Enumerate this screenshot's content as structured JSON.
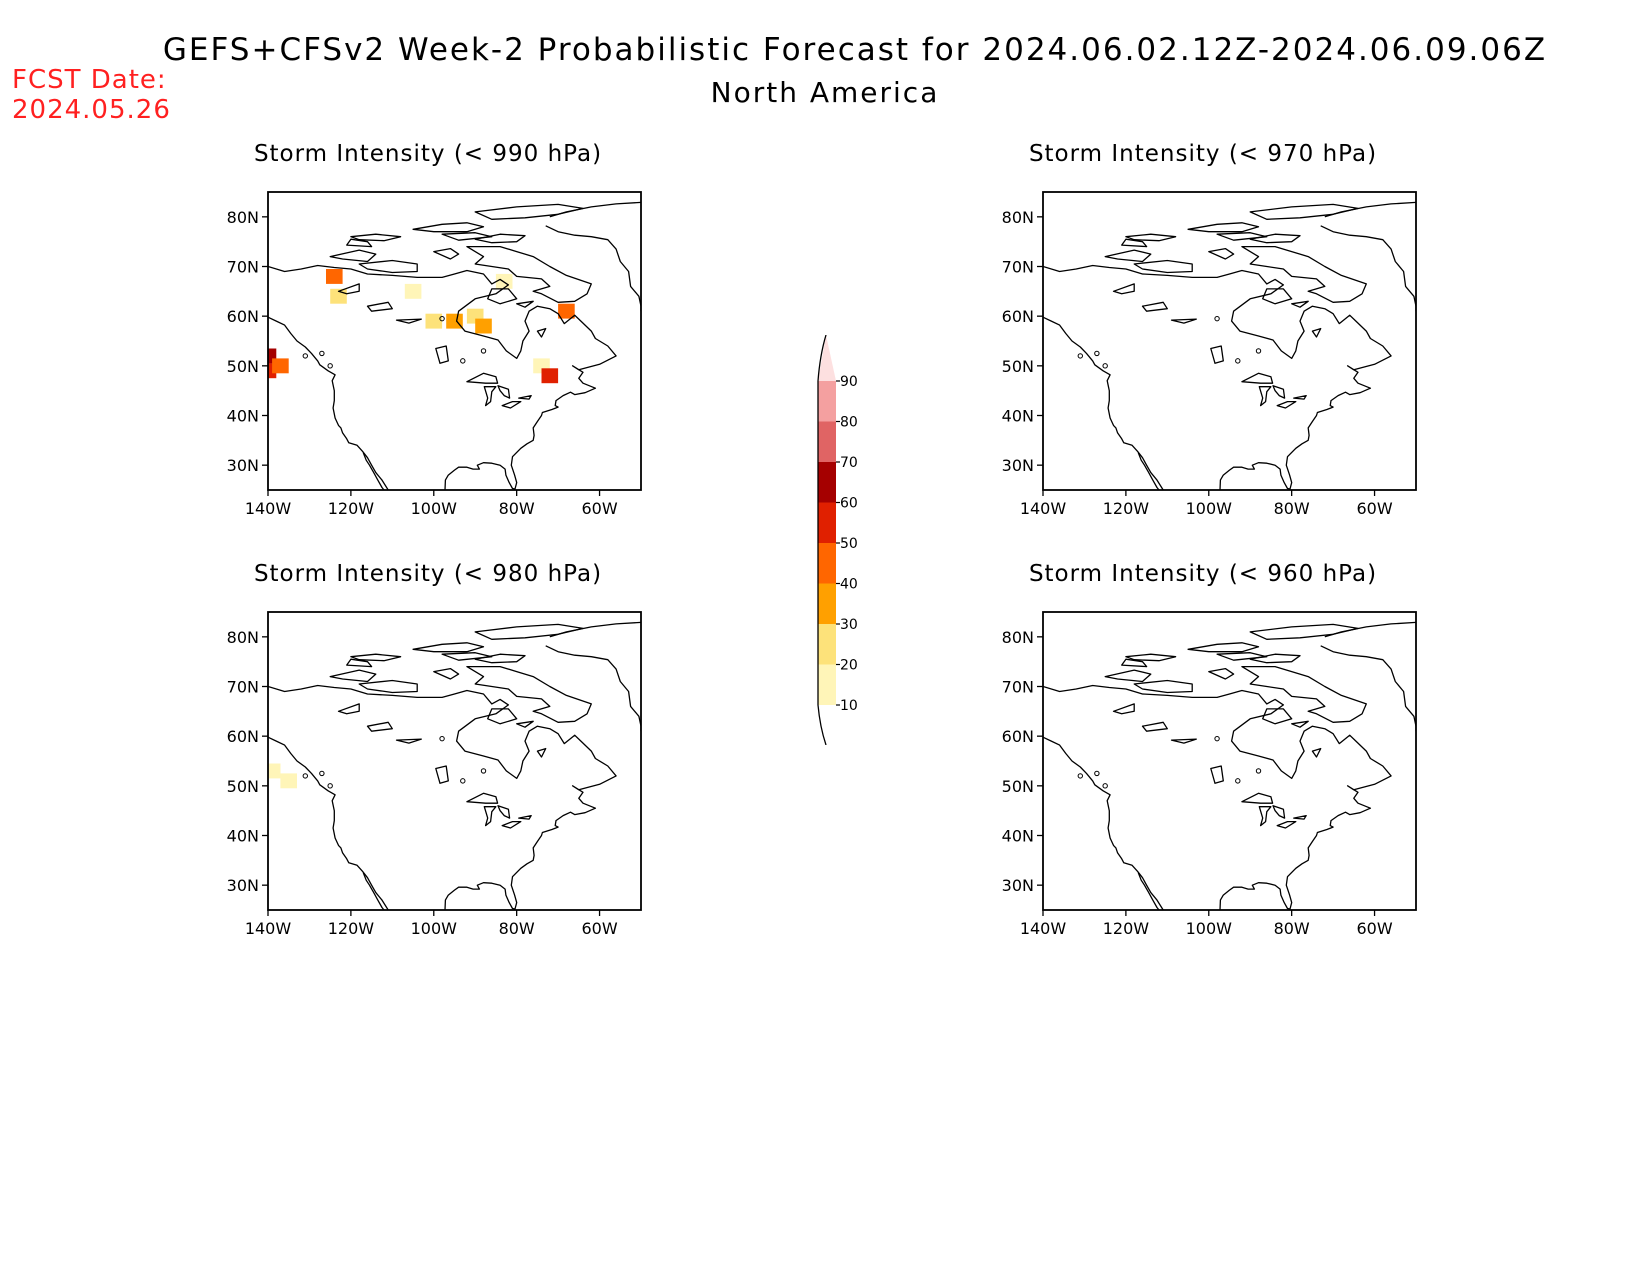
{
  "header": {
    "title": "GEFS+CFSv2 Week-2 Probabilistic Forecast for 2024.06.02.12Z-2024.06.09.06Z",
    "subtitle": "North America",
    "fcst_label": "FCST Date:",
    "fcst_date": "2024.05.26"
  },
  "colors": {
    "fcst_text": "#ff2020",
    "scale": [
      "#fff5b8",
      "#fde27a",
      "#ffa000",
      "#ff6600",
      "#e02000",
      "#a50000",
      "#e06464",
      "#f4a0a0",
      "#fde0e0"
    ]
  },
  "colorbar": {
    "labels": [
      "10",
      "20",
      "30",
      "40",
      "50",
      "60",
      "70",
      "80",
      "90"
    ]
  },
  "axes": {
    "lat_labels": [
      "80N",
      "70N",
      "60N",
      "50N",
      "40N",
      "30N"
    ],
    "lon_labels": [
      "140W",
      "120W",
      "100W",
      "80W",
      "60W"
    ]
  },
  "panels": [
    {
      "id": "p990",
      "title": "Storm Intensity (< 990 hPa)",
      "shading": [
        {
          "lon": -140,
          "lat": 49,
          "prob": 50
        },
        {
          "lon": -140,
          "lat": 52,
          "prob": 60
        },
        {
          "lon": -137,
          "lat": 50,
          "prob": 40
        },
        {
          "lon": -124,
          "lat": 68,
          "prob": 40
        },
        {
          "lon": -123,
          "lat": 64,
          "prob": 20
        },
        {
          "lon": -105,
          "lat": 65,
          "prob": 10
        },
        {
          "lon": -100,
          "lat": 59,
          "prob": 20
        },
        {
          "lon": -95,
          "lat": 59,
          "prob": 30
        },
        {
          "lon": -90,
          "lat": 60,
          "prob": 20
        },
        {
          "lon": -88,
          "lat": 58,
          "prob": 30
        },
        {
          "lon": -83,
          "lat": 67,
          "prob": 10
        },
        {
          "lon": -74,
          "lat": 50,
          "prob": 10
        },
        {
          "lon": -72,
          "lat": 48,
          "prob": 50
        },
        {
          "lon": -68,
          "lat": 61,
          "prob": 40
        }
      ]
    },
    {
      "id": "p970",
      "title": "Storm Intensity (< 970 hPa)",
      "shading": []
    },
    {
      "id": "p980",
      "title": "Storm Intensity (< 980 hPa)",
      "shading": [
        {
          "lon": -139,
          "lat": 53,
          "prob": 10
        },
        {
          "lon": -135,
          "lat": 51,
          "prob": 10
        }
      ]
    },
    {
      "id": "p960",
      "title": "Storm Intensity (< 960 hPa)",
      "shading": []
    }
  ]
}
